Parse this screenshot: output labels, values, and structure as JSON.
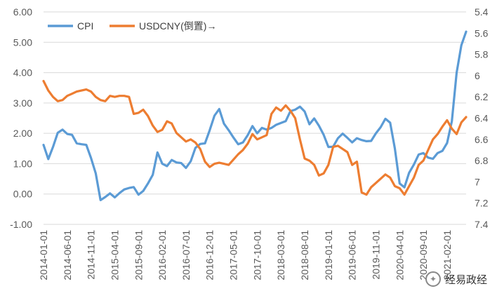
{
  "chart_data": {
    "type": "line",
    "title": "",
    "legend_position": "top-left",
    "grid": true,
    "x": [
      "2014-01",
      "2014-02",
      "2014-03",
      "2014-04",
      "2014-05",
      "2014-06",
      "2014-07",
      "2014-08",
      "2014-09",
      "2014-10",
      "2014-11",
      "2014-12",
      "2015-01",
      "2015-02",
      "2015-03",
      "2015-04",
      "2015-05",
      "2015-06",
      "2015-07",
      "2015-08",
      "2015-09",
      "2015-10",
      "2015-11",
      "2015-12",
      "2016-01",
      "2016-02",
      "2016-03",
      "2016-04",
      "2016-05",
      "2016-06",
      "2016-07",
      "2016-08",
      "2016-09",
      "2016-10",
      "2016-11",
      "2016-12",
      "2017-01",
      "2017-02",
      "2017-03",
      "2017-04",
      "2017-05",
      "2017-06",
      "2017-07",
      "2017-08",
      "2017-09",
      "2017-10",
      "2017-11",
      "2017-12",
      "2018-01",
      "2018-02",
      "2018-03",
      "2018-04",
      "2018-05",
      "2018-06",
      "2018-07",
      "2018-08",
      "2018-09",
      "2018-10",
      "2018-11",
      "2018-12",
      "2019-01",
      "2019-02",
      "2019-03",
      "2019-04",
      "2019-05",
      "2019-06",
      "2019-07",
      "2019-08",
      "2019-09",
      "2019-10",
      "2019-11",
      "2019-12",
      "2020-01",
      "2020-02",
      "2020-03",
      "2020-04",
      "2020-05",
      "2020-06",
      "2020-07",
      "2020-08",
      "2020-09",
      "2020-10",
      "2020-11",
      "2020-12",
      "2021-01",
      "2021-02",
      "2021-03",
      "2021-04",
      "2021-05",
      "2021-06"
    ],
    "x_tick_labels": [
      "2014-01-01",
      "2014-06-01",
      "2014-11-01",
      "2015-04-01",
      "2015-09-01",
      "2016-02-01",
      "2016-07-01",
      "2016-12-01",
      "2017-05-01",
      "2017-10-01",
      "2018-03-01",
      "2018-08-01",
      "2019-01-01",
      "2019-06-01",
      "2019-11-01",
      "2020-04-01",
      "2020-09-01",
      "2021-02-01"
    ],
    "y_left": {
      "ticks": [
        "6.00",
        "5.00",
        "4.00",
        "3.00",
        "2.00",
        "1.00",
        "0.00",
        "-1.00"
      ],
      "range": [
        -1,
        6
      ]
    },
    "y_right": {
      "ticks": [
        "5.4",
        "5.6",
        "5.8",
        "6",
        "6.2",
        "6.4",
        "6.6",
        "6.8",
        "7",
        "7.2",
        "7.4"
      ],
      "range": [
        5.4,
        7.4
      ],
      "inverted": true
    },
    "series": [
      {
        "name": "CPI",
        "axis": "left",
        "color": "#5b9bd5",
        "values": [
          1.62,
          1.15,
          1.55,
          2.02,
          2.12,
          1.98,
          1.95,
          1.67,
          1.64,
          1.62,
          1.19,
          0.68,
          -0.2,
          -0.1,
          0.02,
          -0.11,
          0.03,
          0.15,
          0.2,
          0.23,
          -0.02,
          0.1,
          0.35,
          0.63,
          1.37,
          1.0,
          0.92,
          1.12,
          1.04,
          1.02,
          0.86,
          1.08,
          1.52,
          1.65,
          1.67,
          2.1,
          2.58,
          2.8,
          2.32,
          2.1,
          1.86,
          1.64,
          1.7,
          1.94,
          2.24,
          2.0,
          2.18,
          2.12,
          2.18,
          2.28,
          2.34,
          2.4,
          2.73,
          2.78,
          2.88,
          2.72,
          2.3,
          2.49,
          2.25,
          1.95,
          1.55,
          1.56,
          1.84,
          1.99,
          1.85,
          1.7,
          1.84,
          1.78,
          1.74,
          1.75,
          2.0,
          2.2,
          2.48,
          2.35,
          1.5,
          0.35,
          0.22,
          0.7,
          0.97,
          1.3,
          1.35,
          1.2,
          1.16,
          1.35,
          1.42,
          1.68,
          2.4,
          4.0,
          4.9,
          5.35
        ]
      },
      {
        "name": "USDCNY(倒置)→",
        "axis": "right",
        "color": "#ed7d31",
        "values": [
          6.05,
          6.14,
          6.2,
          6.24,
          6.23,
          6.19,
          6.17,
          6.15,
          6.14,
          6.13,
          6.15,
          6.2,
          6.23,
          6.24,
          6.19,
          6.2,
          6.19,
          6.19,
          6.2,
          6.36,
          6.35,
          6.32,
          6.38,
          6.47,
          6.53,
          6.51,
          6.43,
          6.45,
          6.54,
          6.58,
          6.62,
          6.6,
          6.63,
          6.69,
          6.81,
          6.86,
          6.83,
          6.82,
          6.83,
          6.84,
          6.79,
          6.74,
          6.7,
          6.64,
          6.55,
          6.6,
          6.58,
          6.56,
          6.36,
          6.3,
          6.33,
          6.28,
          6.33,
          6.4,
          6.6,
          6.78,
          6.8,
          6.84,
          6.94,
          6.92,
          6.84,
          6.67,
          6.66,
          6.69,
          6.72,
          6.84,
          6.81,
          7.1,
          7.12,
          7.05,
          7.01,
          6.97,
          6.93,
          6.96,
          7.04,
          7.06,
          7.12,
          7.04,
          6.96,
          6.84,
          6.8,
          6.7,
          6.6,
          6.55,
          6.48,
          6.42,
          6.5,
          6.55,
          6.44,
          6.39
        ]
      }
    ]
  },
  "watermark": {
    "text": "经易政经"
  }
}
